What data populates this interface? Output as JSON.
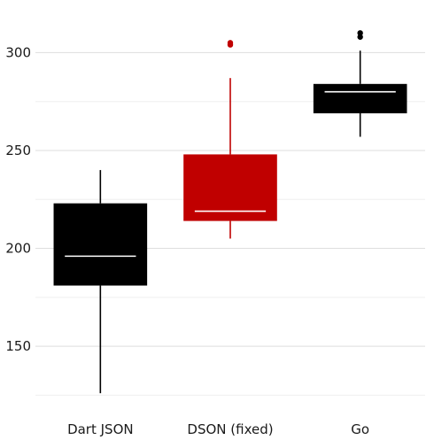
{
  "chart_data": {
    "type": "box",
    "title": "",
    "xlabel": "",
    "ylabel": "",
    "categories": [
      "Dart JSON",
      "DSON (fixed)",
      "Go"
    ],
    "ylim": [
      122,
      321
    ],
    "y_ticks": [
      150,
      200,
      250,
      300
    ],
    "y_minor_ticks": [
      125,
      175,
      225,
      275
    ],
    "grid": true,
    "legend": "none",
    "boxes": [
      {
        "category": "Dart JSON",
        "whisker_low": 126,
        "q1": 181,
        "median": 196,
        "q3": 223,
        "whisker_high": 240,
        "outliers": [],
        "color": "#000000"
      },
      {
        "category": "DSON (fixed)",
        "whisker_low": 205,
        "q1": 214,
        "median": 219,
        "q3": 248,
        "whisker_high": 287,
        "outliers": [
          304,
          305
        ],
        "color": "#c00000"
      },
      {
        "category": "Go",
        "whisker_low": 257,
        "q1": 269,
        "median": 280,
        "q3": 284,
        "whisker_high": 301,
        "outliers": [
          308,
          310
        ],
        "color": "#000000"
      }
    ],
    "median_color": "#ffffff"
  }
}
